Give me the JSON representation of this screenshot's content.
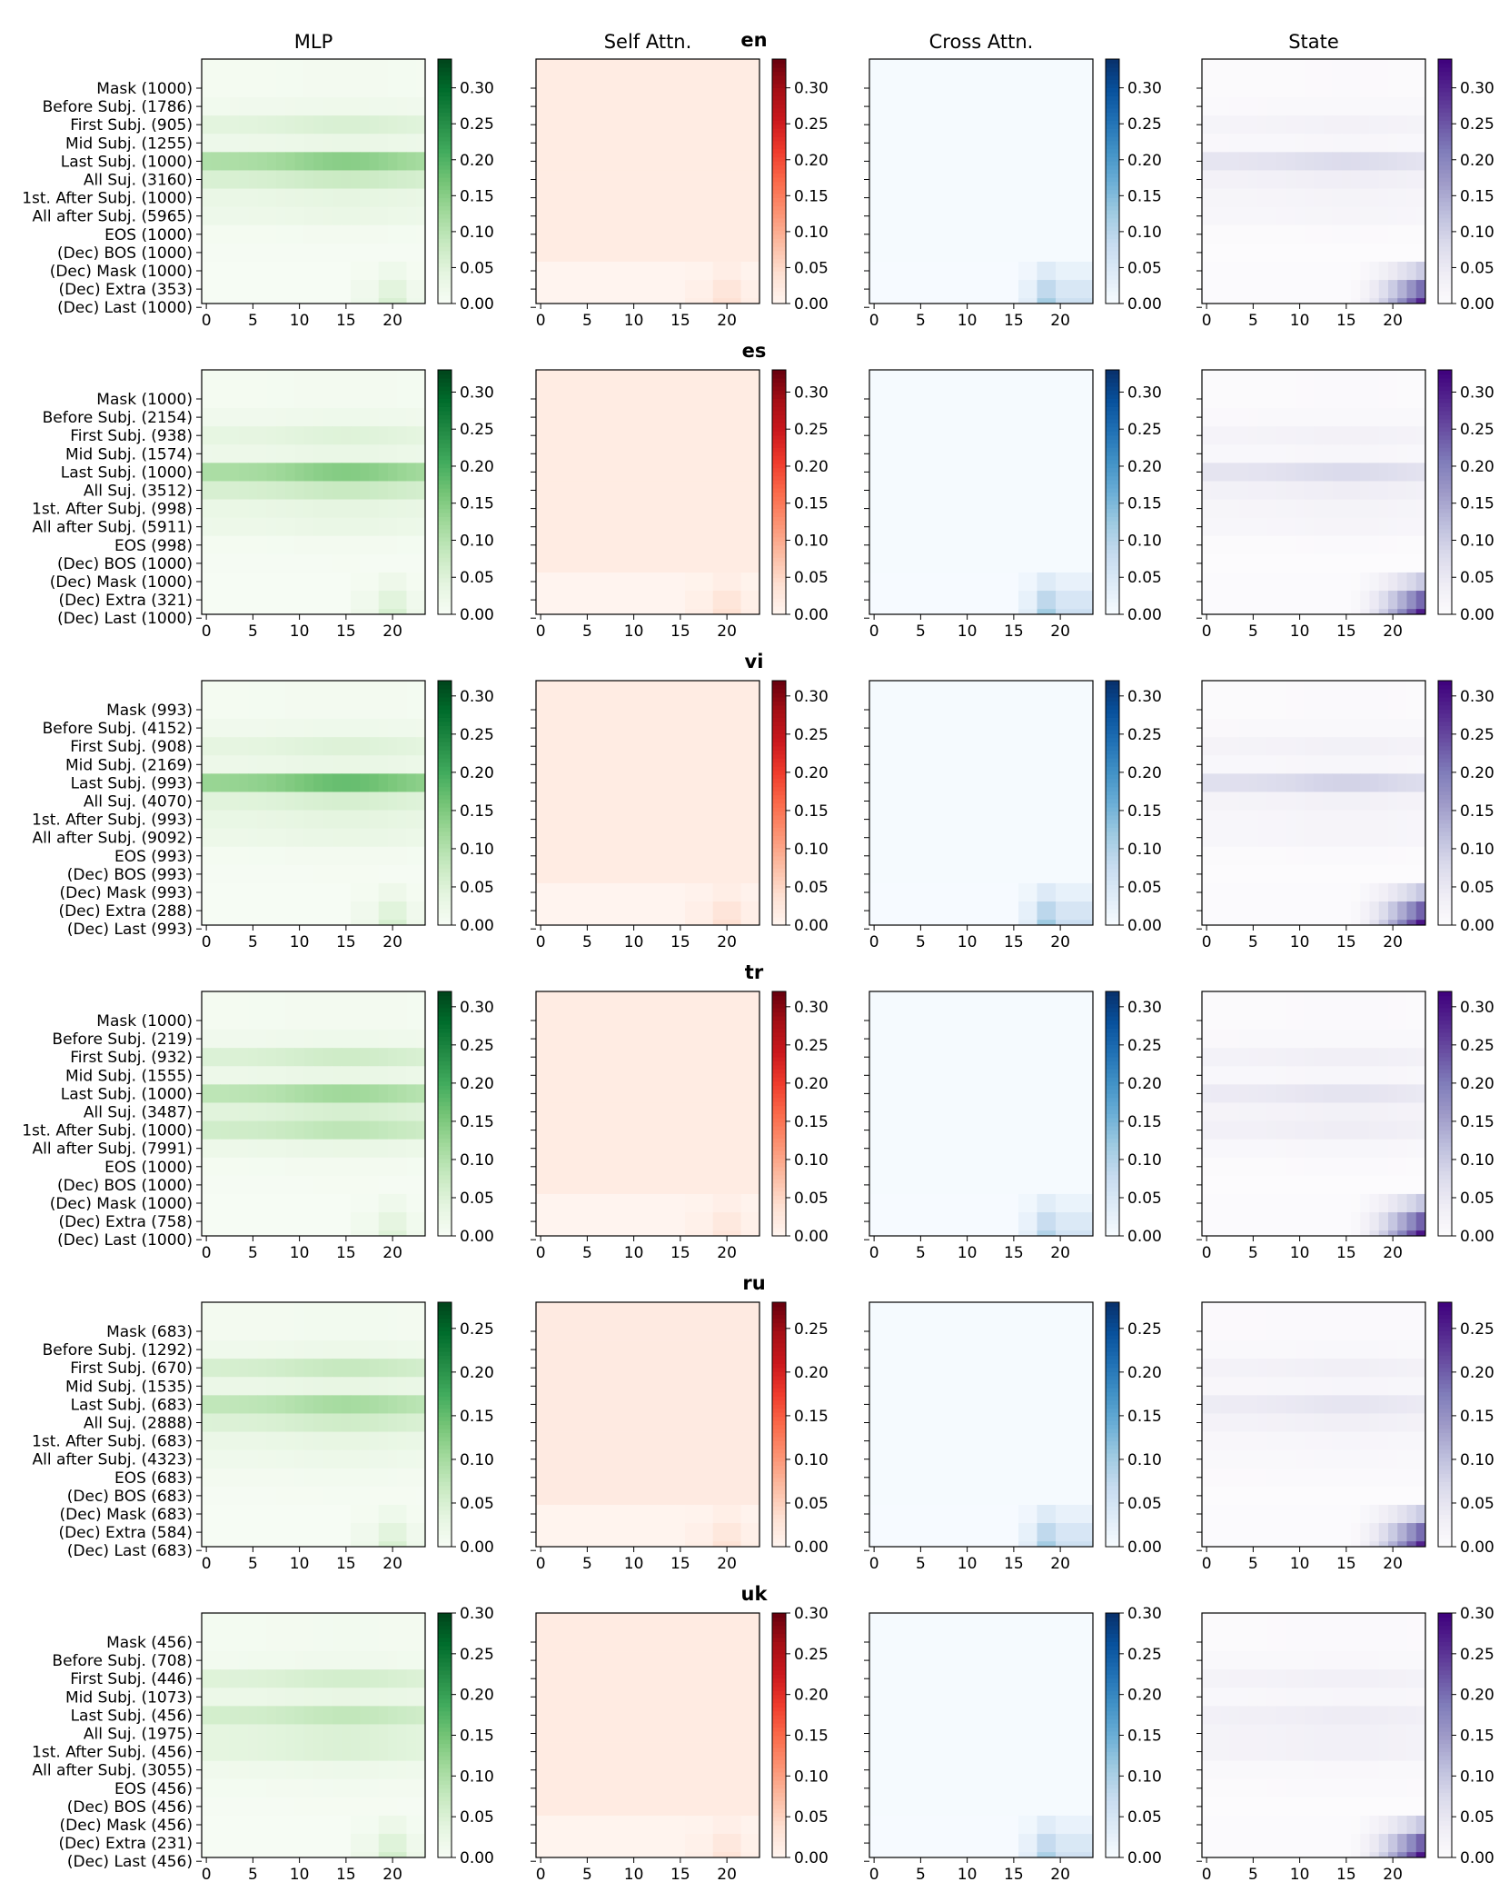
{
  "chart_data": {
    "type": "heatmap",
    "column_titles": [
      "MLP",
      "Self Attn.",
      "Cross Attn.",
      "State"
    ],
    "colormaps": [
      "greens",
      "reds",
      "blues",
      "purples"
    ],
    "x_ticks": [
      "0",
      "5",
      "10",
      "15",
      "20"
    ],
    "n_layers": 24,
    "panels": [
      {
        "lang": "en",
        "vmax": 0.34,
        "colorbar_ticks": [
          "0.00",
          "0.05",
          "0.10",
          "0.15",
          "0.20",
          "0.25",
          "0.30"
        ],
        "row_labels": [
          "Mask (1000)",
          "Before Subj. (1786)",
          "First Subj. (905)",
          "Mid Subj. (1255)",
          "Last Subj. (1000)",
          "All Suj. (3160)",
          "1st. After Subj. (1000)",
          "All after Subj. (5965)",
          "EOS (1000)",
          "(Dec) BOS (1000)",
          "(Dec) Mask (1000)",
          "(Dec) Extra (353)",
          "(Dec) Last (1000)"
        ],
        "row_levels": {
          "mlp": [
            0.01,
            0.02,
            0.06,
            0.03,
            0.15,
            0.08,
            0.04,
            0.03,
            0.01,
            0.005,
            0.01,
            0.01,
            0.01
          ],
          "state": [
            0.005,
            0.01,
            0.03,
            0.015,
            0.08,
            0.04,
            0.025,
            0.02,
            0.005,
            0.0,
            0.005,
            0.005,
            0.005
          ]
        },
        "decoder_peak": {
          "mlp": 0.06,
          "self": 0.04,
          "cross": 0.12,
          "state": 0.3
        }
      },
      {
        "lang": "es",
        "vmax": 0.33,
        "colorbar_ticks": [
          "0.00",
          "0.05",
          "0.10",
          "0.15",
          "0.20",
          "0.25",
          "0.30"
        ],
        "row_labels": [
          "Mask (1000)",
          "Before Subj. (2154)",
          "First Subj. (938)",
          "Mid Subj. (1574)",
          "Last Subj. (1000)",
          "All Suj. (3512)",
          "1st. After Subj. (998)",
          "All after Subj. (5911)",
          "EOS (998)",
          "(Dec) BOS (1000)",
          "(Dec) Mask (1000)",
          "(Dec) Extra (321)",
          "(Dec) Last (1000)"
        ],
        "row_levels": {
          "mlp": [
            0.01,
            0.02,
            0.05,
            0.03,
            0.15,
            0.08,
            0.04,
            0.03,
            0.01,
            0.005,
            0.01,
            0.01,
            0.01
          ],
          "state": [
            0.005,
            0.01,
            0.03,
            0.015,
            0.08,
            0.04,
            0.025,
            0.02,
            0.005,
            0.0,
            0.005,
            0.005,
            0.005
          ]
        },
        "decoder_peak": {
          "mlp": 0.06,
          "self": 0.04,
          "cross": 0.12,
          "state": 0.3
        }
      },
      {
        "lang": "vi",
        "vmax": 0.32,
        "colorbar_ticks": [
          "0.00",
          "0.05",
          "0.10",
          "0.15",
          "0.20",
          "0.25",
          "0.30"
        ],
        "row_labels": [
          "Mask (993)",
          "Before Subj. (4152)",
          "First Subj. (908)",
          "Mid Subj. (2169)",
          "Last Subj. (993)",
          "All Suj. (4070)",
          "1st. After Subj. (993)",
          "All after Subj. (9092)",
          "EOS (993)",
          "(Dec) BOS (993)",
          "(Dec) Mask (993)",
          "(Dec) Extra (288)",
          "(Dec) Last (993)"
        ],
        "row_levels": {
          "mlp": [
            0.01,
            0.02,
            0.05,
            0.03,
            0.17,
            0.06,
            0.04,
            0.03,
            0.01,
            0.005,
            0.01,
            0.01,
            0.01
          ],
          "state": [
            0.005,
            0.01,
            0.03,
            0.015,
            0.09,
            0.03,
            0.02,
            0.02,
            0.005,
            0.0,
            0.005,
            0.005,
            0.005
          ]
        },
        "decoder_peak": {
          "mlp": 0.06,
          "self": 0.04,
          "cross": 0.12,
          "state": 0.3
        }
      },
      {
        "lang": "tr",
        "vmax": 0.32,
        "colorbar_ticks": [
          "0.00",
          "0.05",
          "0.10",
          "0.15",
          "0.20",
          "0.25",
          "0.30"
        ],
        "row_labels": [
          "Mask (1000)",
          "Before Subj. (219)",
          "First Subj. (932)",
          "Mid Subj. (1555)",
          "Last Subj. (1000)",
          "All Suj. (3487)",
          "1st. After Subj. (1000)",
          "All after Subj. (7991)",
          "EOS (1000)",
          "(Dec) BOS (1000)",
          "(Dec) Mask (1000)",
          "(Dec) Extra (758)",
          "(Dec) Last (1000)"
        ],
        "row_levels": {
          "mlp": [
            0.01,
            0.02,
            0.07,
            0.03,
            0.12,
            0.06,
            0.09,
            0.03,
            0.01,
            0.005,
            0.01,
            0.01,
            0.01
          ],
          "state": [
            0.005,
            0.01,
            0.035,
            0.015,
            0.06,
            0.03,
            0.04,
            0.015,
            0.005,
            0.0,
            0.005,
            0.005,
            0.005
          ]
        },
        "decoder_peak": {
          "mlp": 0.05,
          "self": 0.03,
          "cross": 0.1,
          "state": 0.3
        }
      },
      {
        "lang": "ru",
        "vmax": 0.28,
        "colorbar_ticks": [
          "0.00",
          "0.05",
          "0.10",
          "0.15",
          "0.20",
          "0.25"
        ],
        "row_labels": [
          "Mask (683)",
          "Before Subj. (1292)",
          "First Subj. (670)",
          "Mid Subj. (1535)",
          "Last Subj. (683)",
          "All Suj. (2888)",
          "1st. After Subj. (683)",
          "All after Subj. (4323)",
          "EOS (683)",
          "(Dec) BOS (683)",
          "(Dec) Mask (683)",
          "(Dec) Extra (584)",
          "(Dec) Last (683)"
        ],
        "row_levels": {
          "mlp": [
            0.01,
            0.02,
            0.07,
            0.03,
            0.1,
            0.06,
            0.03,
            0.02,
            0.01,
            0.005,
            0.01,
            0.01,
            0.01
          ],
          "state": [
            0.005,
            0.01,
            0.03,
            0.015,
            0.05,
            0.03,
            0.015,
            0.01,
            0.005,
            0.0,
            0.005,
            0.005,
            0.005
          ]
        },
        "decoder_peak": {
          "mlp": 0.05,
          "self": 0.03,
          "cross": 0.1,
          "state": 0.25
        }
      },
      {
        "lang": "uk",
        "vmax": 0.3,
        "colorbar_ticks": [
          "0.00",
          "0.05",
          "0.10",
          "0.15",
          "0.20",
          "0.25",
          "0.30"
        ],
        "row_labels": [
          "Mask (456)",
          "Before Subj. (708)",
          "First Subj. (446)",
          "Mid Subj. (1073)",
          "Last Subj. (456)",
          "All Suj. (1975)",
          "1st. After Subj. (456)",
          "All after Subj. (3055)",
          "EOS (456)",
          "(Dec) BOS (456)",
          "(Dec) Mask (456)",
          "(Dec) Extra (231)",
          "(Dec) Last (456)"
        ],
        "row_levels": {
          "mlp": [
            0.01,
            0.015,
            0.06,
            0.03,
            0.08,
            0.05,
            0.05,
            0.02,
            0.01,
            0.005,
            0.01,
            0.01,
            0.01
          ],
          "state": [
            0.005,
            0.01,
            0.03,
            0.015,
            0.04,
            0.03,
            0.03,
            0.01,
            0.005,
            0.0,
            0.005,
            0.005,
            0.005
          ]
        },
        "decoder_peak": {
          "mlp": 0.06,
          "self": 0.03,
          "cross": 0.1,
          "state": 0.28
        }
      }
    ]
  }
}
